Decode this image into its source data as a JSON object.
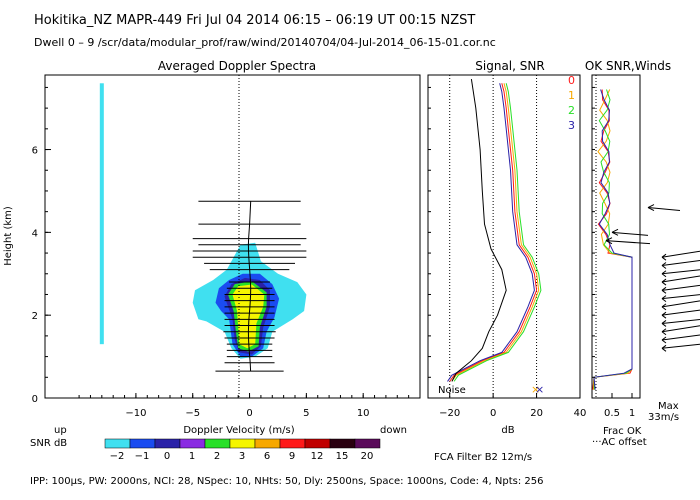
{
  "header": {
    "line1": "Hokitika_NZ   MAPR-449   Fri Jul 04 2014 06:15 – 06:19 UT 00:15 NZST",
    "line2": "Dwell   0  –   9     /scr/data/modular_prof/raw/wind/20140704/04-Jul-2014_06-15-01.cor.nc"
  },
  "panel_titles": {
    "spectra": "Averaged Doppler Spectra",
    "signal": "Signal, SNR",
    "ok": "OK SNR,Winds"
  },
  "footer": {
    "params": "IPP: 100µs,  PW: 2000ns,  NCI:  28,  NSpec: 10,  NHts: 50,  Dly: 2500ns,  Space: 1000ns,  Code: 4,  Npts: 256",
    "filter": "FCA Filter B2 12m/s",
    "frac_ok": "Frac OK",
    "ac_offset": "AC offset",
    "max_label": "Max",
    "max_value": "33m/s",
    "up": "up",
    "down": "down",
    "snr_db": "SNR dB"
  },
  "colors": {
    "cyan": "#40e0f0",
    "blue": "#1a4cf0",
    "navy": "#2a22a8",
    "purple": "#8a2be2",
    "green": "#28e028",
    "yellow": "#f5f500",
    "orange": "#f7a800",
    "red": "#ff1a1a",
    "darkred": "#c00000",
    "black": "#000000"
  },
  "chart_data": [
    {
      "type": "heatmap",
      "title": "Averaged Doppler Spectra",
      "xlabel": "Doppler Velocity (m/s)",
      "ylabel": "Height (km)",
      "xlim": [
        -18,
        15
      ],
      "ylim": [
        0,
        7.8
      ],
      "x_ticks": [
        -10,
        -5,
        0,
        5,
        10
      ],
      "y_ticks": [
        0,
        2,
        4,
        6
      ],
      "colorbar": {
        "label": "SNR dB",
        "values": [
          -2,
          -1,
          0,
          1,
          2,
          3,
          6,
          9,
          12,
          15,
          20
        ],
        "colors": [
          "#40e0f0",
          "#1a4cf0",
          "#2a22a8",
          "#8a2be2",
          "#28e028",
          "#f5f500",
          "#f7a800",
          "#ff1a1a",
          "#c00000",
          "#2a0010",
          "#5a0a5a"
        ]
      },
      "x_annotations": {
        "left": "up",
        "right": "down"
      },
      "interference_line": {
        "velocity": -13,
        "from_km": 1.3,
        "to_km": 7.6
      },
      "width_bars": [
        {
          "h": 0.65,
          "half_width": 3.0
        },
        {
          "h": 0.85,
          "half_width": 2.2
        },
        {
          "h": 1.0,
          "half_width": 2.0
        },
        {
          "h": 1.15,
          "half_width": 2.0
        },
        {
          "h": 1.3,
          "half_width": 2.0
        },
        {
          "h": 1.45,
          "half_width": 2.2
        },
        {
          "h": 1.6,
          "half_width": 2.3
        },
        {
          "h": 1.75,
          "half_width": 2.2
        },
        {
          "h": 1.9,
          "half_width": 2.2
        },
        {
          "h": 2.05,
          "half_width": 2.2
        },
        {
          "h": 2.2,
          "half_width": 2.2
        },
        {
          "h": 2.35,
          "half_width": 2.2
        },
        {
          "h": 2.5,
          "half_width": 2.2
        },
        {
          "h": 2.65,
          "half_width": 2.0
        },
        {
          "h": 2.8,
          "half_width": 1.8
        },
        {
          "h": 3.1,
          "half_width": 3.5
        },
        {
          "h": 3.25,
          "half_width": 4.0
        },
        {
          "h": 3.4,
          "half_width": 5.0
        },
        {
          "h": 3.55,
          "half_width": 5.0
        },
        {
          "h": 3.7,
          "half_width": 4.5
        },
        {
          "h": 3.85,
          "half_width": 5.0
        },
        {
          "h": 4.2,
          "half_width": 4.5
        },
        {
          "h": 4.75,
          "half_width": 4.5
        }
      ]
    },
    {
      "type": "line",
      "title": "Signal, SNR",
      "xlabel": "dB",
      "xlim": [
        -30,
        40
      ],
      "x_ticks": [
        -20,
        0,
        20,
        40
      ],
      "ylim": [
        0,
        7.8
      ],
      "annotation": "Noise",
      "series": [
        {
          "name": "signal 0",
          "color": "#ff1a1a",
          "x": [
            -20,
            -18,
            -5,
            5,
            12,
            17,
            20,
            19,
            16,
            12,
            10,
            9,
            7,
            6,
            5,
            4
          ],
          "y": [
            0.4,
            0.55,
            0.9,
            1.1,
            1.6,
            2.2,
            2.6,
            3.0,
            3.4,
            3.7,
            4.5,
            5.5,
            6.5,
            7.0,
            7.4,
            7.6
          ]
        },
        {
          "name": "signal 1",
          "color": "#f7a800",
          "x": [
            -19,
            -17,
            -4,
            6,
            13,
            18,
            21,
            20,
            17,
            13,
            11,
            10,
            8,
            7,
            6,
            5
          ],
          "y": [
            0.4,
            0.55,
            0.9,
            1.1,
            1.6,
            2.2,
            2.6,
            3.0,
            3.4,
            3.7,
            4.5,
            5.5,
            6.5,
            7.0,
            7.4,
            7.6
          ]
        },
        {
          "name": "signal 2",
          "color": "#28e028",
          "x": [
            -18,
            -16,
            -3,
            7,
            14,
            19,
            22,
            21,
            18,
            14,
            12,
            11,
            9,
            8,
            7,
            6
          ],
          "y": [
            0.4,
            0.55,
            0.9,
            1.1,
            1.6,
            2.2,
            2.6,
            3.0,
            3.4,
            3.7,
            4.5,
            5.5,
            6.5,
            7.0,
            7.4,
            7.6
          ]
        },
        {
          "name": "signal 3",
          "color": "#2a22a8",
          "x": [
            -21,
            -19,
            -6,
            4,
            11,
            16,
            19,
            18,
            15,
            11,
            9,
            8,
            6,
            5,
            4,
            3
          ],
          "y": [
            0.4,
            0.55,
            0.9,
            1.1,
            1.6,
            2.2,
            2.6,
            3.0,
            3.4,
            3.7,
            4.5,
            5.5,
            6.5,
            7.0,
            7.4,
            7.6
          ]
        },
        {
          "name": "noise",
          "color": "#000000",
          "x": [
            -19,
            -17,
            -10,
            -5,
            -2,
            2,
            6,
            4,
            -1,
            -4,
            -5,
            -6,
            -8,
            -10
          ],
          "y": [
            0.4,
            0.6,
            0.9,
            1.2,
            1.6,
            2.0,
            2.6,
            3.1,
            3.6,
            4.2,
            5.0,
            6.0,
            7.0,
            7.7
          ]
        }
      ]
    },
    {
      "type": "line",
      "title": "OK SNR,Winds",
      "xlabel": "Frac OK",
      "x_ticks": [
        0.5,
        1
      ],
      "xlim": [
        0,
        1.2
      ],
      "ylim": [
        0,
        7.8
      ],
      "legend": [
        "0",
        "1",
        "2",
        "3"
      ],
      "max_wind": "33m/s"
    }
  ]
}
